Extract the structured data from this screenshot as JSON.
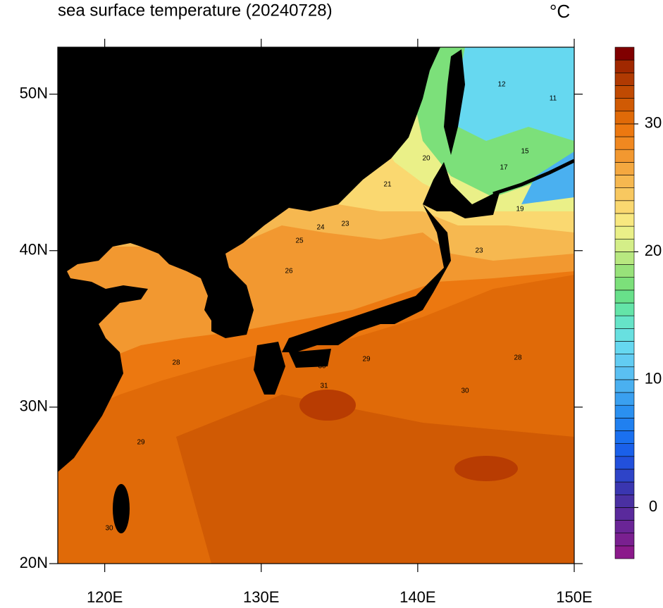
{
  "map": {
    "title": "sea surface temperature (20240728)",
    "unit": "°C",
    "lonlim": [
      117,
      150
    ],
    "latlim": [
      20,
      53
    ],
    "lonticks": [
      {
        "value": 120,
        "label": "120E"
      },
      {
        "value": 130,
        "label": "130E"
      },
      {
        "value": 140,
        "label": "140E"
      },
      {
        "value": 150,
        "label": "150E"
      }
    ],
    "latticks": [
      {
        "value": 20,
        "label": "20N"
      },
      {
        "value": 30,
        "label": "30N"
      },
      {
        "value": 40,
        "label": "40N"
      },
      {
        "value": 50,
        "label": "50N"
      }
    ],
    "colorbar": {
      "lim": [
        -4,
        36
      ],
      "ticks": [
        0,
        10,
        20,
        30
      ],
      "colors": [
        "#8b1a8b",
        "#7a2090",
        "#6a2596",
        "#5a2a9c",
        "#4a30a2",
        "#3a36b0",
        "#2e44c8",
        "#2250dc",
        "#1a60ea",
        "#1a70f0",
        "#2080f0",
        "#2a90f0",
        "#3aa0f0",
        "#4ab0f0",
        "#5ac0f2",
        "#62ccf2",
        "#66d8f0",
        "#68e0e0",
        "#66e4c8",
        "#64e4a8",
        "#68e08a",
        "#7ce07a",
        "#98e27a",
        "#b8e880",
        "#d4ee88",
        "#eaf088",
        "#f8e880",
        "#fad870",
        "#f8c860",
        "#f6b850",
        "#f4a840",
        "#f29830",
        "#f08820",
        "#ec7810",
        "#e06a08",
        "#d05a04",
        "#c04a02",
        "#b03a02",
        "#a02800",
        "#800000"
      ]
    },
    "contour_labels": [
      12,
      11,
      15,
      17,
      19,
      20,
      21,
      23,
      24,
      25,
      26,
      28,
      29,
      30,
      30,
      31,
      29,
      28,
      30,
      23
    ]
  }
}
